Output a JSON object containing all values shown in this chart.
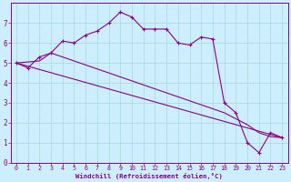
{
  "xlabel": "Windchill (Refroidissement éolien,°C)",
  "bg_color": "#cceeff",
  "line_color": "#880088",
  "grid_color": "#aadddd",
  "xlim": [
    -0.5,
    23.5
  ],
  "ylim": [
    0,
    8
  ],
  "xticks": [
    0,
    1,
    2,
    3,
    4,
    5,
    6,
    7,
    8,
    9,
    10,
    11,
    12,
    13,
    14,
    15,
    16,
    17,
    18,
    19,
    20,
    21,
    22,
    23
  ],
  "yticks": [
    0,
    1,
    2,
    3,
    4,
    5,
    6,
    7
  ],
  "series1_x": [
    0,
    1,
    2,
    3,
    4,
    5,
    6,
    7,
    8,
    9,
    10,
    11,
    12,
    13,
    14,
    15,
    16,
    17,
    18,
    19,
    20,
    21,
    22,
    23
  ],
  "series1_y": [
    5.0,
    4.75,
    5.3,
    5.5,
    6.1,
    6.0,
    6.4,
    6.6,
    7.0,
    7.55,
    7.3,
    6.7,
    6.7,
    6.7,
    6.0,
    5.9,
    6.3,
    6.2,
    3.0,
    2.5,
    1.0,
    0.5,
    1.5,
    1.25
  ],
  "series2_x": [
    0,
    2,
    3,
    4,
    5,
    6,
    7,
    8,
    9,
    10,
    11,
    12,
    13,
    14,
    15,
    16,
    17,
    18,
    19,
    20,
    21,
    22,
    23
  ],
  "series2_y": [
    5.0,
    5.1,
    5.5,
    5.3,
    5.1,
    4.9,
    4.7,
    4.5,
    4.3,
    4.1,
    3.9,
    3.7,
    3.5,
    3.3,
    3.1,
    2.9,
    2.7,
    2.5,
    2.2,
    1.9,
    1.5,
    1.3,
    1.25
  ],
  "series3_x": [
    0,
    23
  ],
  "series3_y": [
    5.0,
    1.25
  ]
}
